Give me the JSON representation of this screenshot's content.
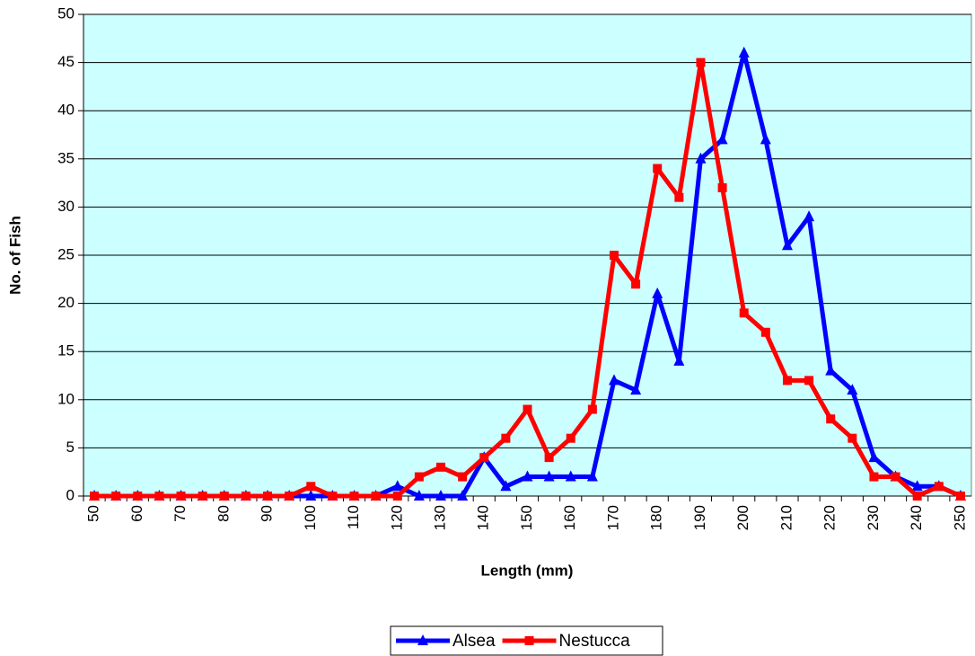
{
  "chart_data": {
    "type": "line",
    "ylabel": "No. of Fish",
    "xlabel": "Length (mm)",
    "categories": [
      "50",
      null,
      "60",
      null,
      "70",
      null,
      "80",
      null,
      "90",
      null,
      "100",
      null,
      "110",
      null,
      "120",
      null,
      "130",
      null,
      "140",
      null,
      "150",
      null,
      "160",
      null,
      "170",
      null,
      "180",
      null,
      "190",
      null,
      "200",
      null,
      "210",
      null,
      "220",
      null,
      "230",
      null,
      "240",
      null,
      "250"
    ],
    "series": [
      {
        "name": "Alsea",
        "color": "#0000ff",
        "marker": "triangle",
        "values": [
          0,
          0,
          0,
          0,
          0,
          0,
          0,
          0,
          0,
          0,
          0,
          0,
          0,
          0,
          1,
          0,
          0,
          0,
          4,
          1,
          2,
          2,
          2,
          2,
          12,
          11,
          21,
          14,
          35,
          37,
          46,
          37,
          26,
          29,
          13,
          11,
          4,
          2,
          1,
          1,
          0
        ]
      },
      {
        "name": "Nestucca",
        "color": "#ff0000",
        "marker": "square",
        "values": [
          0,
          0,
          0,
          0,
          0,
          0,
          0,
          0,
          0,
          0,
          1,
          0,
          0,
          0,
          0,
          2,
          3,
          2,
          4,
          6,
          9,
          4,
          6,
          9,
          25,
          22,
          34,
          31,
          45,
          32,
          19,
          17,
          12,
          12,
          8,
          6,
          2,
          2,
          0,
          1,
          0
        ]
      }
    ],
    "ylim": [
      0,
      50
    ],
    "yticks": [
      0,
      5,
      10,
      15,
      20,
      25,
      30,
      35,
      40,
      45,
      50
    ],
    "grid": true,
    "legend": "bottom",
    "background": "#ccffff"
  }
}
